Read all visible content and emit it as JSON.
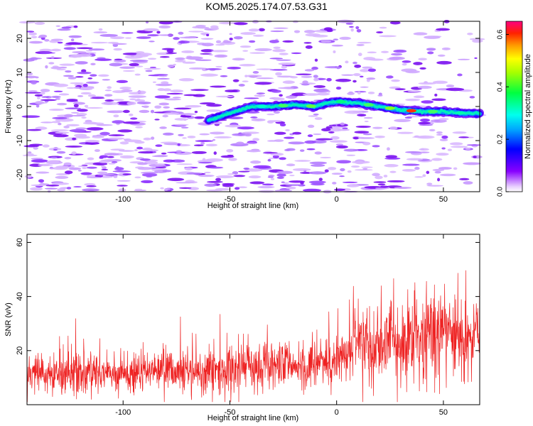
{
  "title": "KOM5.2025.174.07.53.G31",
  "colors": {
    "snr_line": "#ee2222",
    "axis": "#000000",
    "background": "#ffffff"
  },
  "chart_data": [
    {
      "type": "heatmap",
      "xlabel": "Height of straight line (km)",
      "ylabel": "Frequency (Hz)",
      "xlim": [
        -145,
        67
      ],
      "ylim": [
        -25,
        25
      ],
      "xticks": [
        -100,
        -50,
        0,
        50
      ],
      "yticks": [
        -20,
        -10,
        0,
        10,
        20
      ],
      "colorbar": {
        "label": "Normalized spectral amplitude",
        "range": [
          0.0,
          0.65
        ],
        "ticks": [
          0.0,
          0.2,
          0.4,
          0.6
        ],
        "colormap": "hsv-rainbow (white at 0, violet → blue → cyan → green → yellow → red → magenta)"
      },
      "signal_trace": {
        "x_km": [
          -60,
          -50,
          -40,
          -30,
          -20,
          -10,
          -5,
          0,
          10,
          20,
          30,
          40,
          50,
          60,
          67
        ],
        "freq_hz": [
          -4,
          -2,
          0,
          0,
          0.5,
          0,
          1,
          1.5,
          1.0,
          0,
          -1,
          -1.5,
          -1.5,
          -2,
          -2
        ],
        "peak_amplitude": 0.6,
        "peak_near_km": 35
      }
    },
    {
      "type": "line",
      "xlabel": "Height of straight line (km)",
      "ylabel": "SNR (v/v)",
      "xlim": [
        -145,
        67
      ],
      "ylim": [
        0,
        63
      ],
      "xticks": [
        -100,
        -50,
        0,
        50
      ],
      "yticks": [
        20,
        40,
        60
      ],
      "series": [
        {
          "color": "#ee2222",
          "description": "noisy SNR trace",
          "trend_x_km": [
            -145,
            -100,
            -50,
            0,
            10,
            30,
            50,
            67
          ],
          "trend_mean": [
            11,
            12,
            13,
            16,
            22,
            24,
            26,
            27
          ],
          "trend_spread": [
            7,
            7,
            8,
            9,
            12,
            14,
            16,
            16
          ]
        }
      ]
    }
  ]
}
